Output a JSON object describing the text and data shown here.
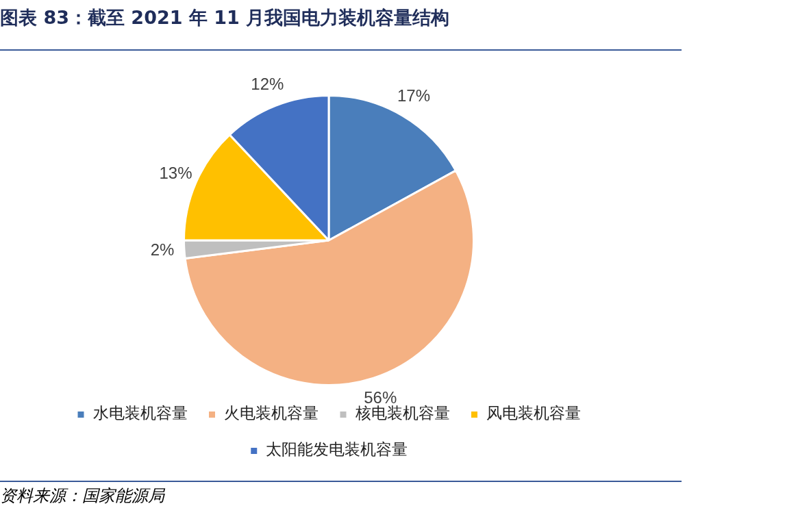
{
  "chart_data": {
    "type": "pie",
    "title": "图表 83：截至 2021 年 11 月我国电力装机容量结构",
    "categories": [
      "水电装机容量",
      "火电装机容量",
      "核电装机容量",
      "风电装机容量",
      "太阳能发电装机容量"
    ],
    "values": [
      17,
      56,
      2,
      13,
      12
    ],
    "colors": [
      "#4a7ebb",
      "#f4b183",
      "#bfbfbf",
      "#ffc000",
      "#4472c4"
    ],
    "value_labels": [
      "17%",
      "56%",
      "2%",
      "13%",
      "12%"
    ],
    "legend": "bottom",
    "annotations": [
      "资料来源：国家能源局"
    ]
  }
}
